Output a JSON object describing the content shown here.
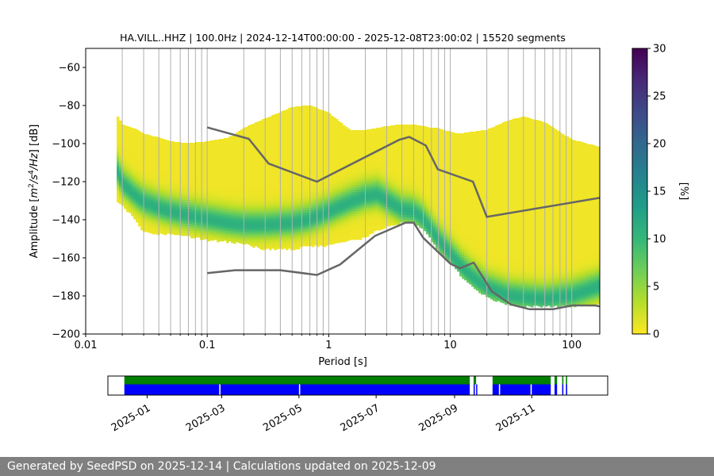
{
  "footer": {
    "text": "Generated by SeedPSD on 2025-12-14 | Calculations updated on 2025-12-09"
  },
  "chart_data": [
    {
      "type": "heatmap",
      "title": "HA.VILL..HHZ | 100.0Hz | 2024-12-14T00:00:00 - 2025-12-08T23:00:02 | 15520 segments",
      "xlabel": "Period [s]",
      "ylabel_parts": [
        "Amplitude [",
        "m",
        "2",
        "/",
        "s",
        "4",
        "/",
        "Hz",
        "] [dB]"
      ],
      "x_scale": "log",
      "xlim": [
        0.01,
        170
      ],
      "ylim": [
        -200,
        -50
      ],
      "x_ticks": [
        0.01,
        0.1,
        1,
        10,
        100
      ],
      "x_tick_labels": [
        "0.01",
        "0.1",
        "1",
        "10",
        "100"
      ],
      "y_ticks": [
        -60,
        -80,
        -100,
        -120,
        -140,
        -160,
        -180,
        -200
      ],
      "y_tick_labels": [
        "−60",
        "−80",
        "−100",
        "−120",
        "−140",
        "−160",
        "−180",
        "−200"
      ],
      "grid": "vertical",
      "colorbar": {
        "label": "[%]",
        "range": [
          0,
          30
        ],
        "ticks": [
          0,
          5,
          10,
          15,
          20,
          25,
          30
        ],
        "tick_labels": [
          "0",
          "5",
          "10",
          "15",
          "20",
          "25",
          "30"
        ],
        "colormap": "viridis",
        "colormap_stops": [
          "#fde725",
          "#b5de2b",
          "#6ece58",
          "#35b779",
          "#1f9e89",
          "#26828e",
          "#31688e",
          "#3e4989",
          "#482878",
          "#440154"
        ]
      },
      "psd_mode": {
        "period": [
          0.018,
          0.02,
          0.025,
          0.03,
          0.04,
          0.05,
          0.07,
          0.1,
          0.15,
          0.2,
          0.3,
          0.5,
          0.7,
          1.0,
          1.5,
          2.0,
          2.5,
          3.0,
          4.0,
          5.0,
          6.0,
          7.0,
          8.0,
          10,
          12,
          15,
          20,
          30,
          40,
          60,
          100,
          170
        ],
        "mode_db": [
          -114,
          -121,
          -127,
          -131,
          -134,
          -136,
          -138,
          -140,
          -142,
          -143,
          -143,
          -142,
          -140,
          -136,
          -131,
          -128,
          -127,
          -130,
          -135,
          -136,
          -140,
          -146,
          -151,
          -158,
          -164,
          -170,
          -176,
          -180,
          -181,
          -182,
          -180,
          -175
        ],
        "upper_db": [
          -85,
          -90,
          -92,
          -95,
          -97,
          -99,
          -100,
          -99,
          -97,
          -92,
          -87,
          -81,
          -80,
          -84,
          -93,
          -93,
          -92,
          -91,
          -90,
          -90,
          -91,
          -92,
          -92,
          -94,
          -95,
          -94,
          -93,
          -88,
          -86,
          -89,
          -98,
          -102
        ],
        "lower_db": [
          -130,
          -132,
          -138,
          -146,
          -147,
          -147,
          -148,
          -150,
          -151,
          -152,
          -155,
          -155,
          -153,
          -153,
          -150,
          -149,
          -145,
          -143,
          -141,
          -141,
          -144,
          -150,
          -156,
          -162,
          -168,
          -174,
          -180,
          -184,
          -185,
          -185,
          -185,
          -184
        ]
      },
      "nlnm": {
        "period": [
          0.1,
          0.17,
          0.4,
          0.8,
          1.24,
          2.4,
          4.3,
          5.0,
          6.0,
          10.0,
          12.0,
          15.6,
          21.9,
          31.6,
          45.0,
          70.0,
          101.0,
          154.0,
          170.0
        ],
        "db": [
          -168,
          -166.5,
          -166.5,
          -169,
          -163.5,
          -148.5,
          -141.5,
          -141.5,
          -149.5,
          -163,
          -165.5,
          -162.5,
          -177.5,
          -184.5,
          -187,
          -187,
          -185,
          -185,
          -185.5
        ]
      },
      "nhnm": {
        "period": [
          0.1,
          0.22,
          0.32,
          0.8,
          3.8,
          4.6,
          6.3,
          7.9,
          15.4,
          20.0,
          170.0
        ],
        "db": [
          -91.5,
          -97.5,
          -110.5,
          -120,
          -98,
          -96.5,
          -101,
          -113.5,
          -120,
          -138.5,
          -128.5
        ]
      }
    },
    {
      "type": "timeline",
      "date_ticks": [
        "2025-01",
        "2025-03",
        "2025-05",
        "2025-07",
        "2025-09",
        "2025-11"
      ],
      "date_tick_values": [
        "2025-01-01",
        "2025-03-01",
        "2025-05-01",
        "2025-07-01",
        "2025-09-01",
        "2025-11-01"
      ],
      "xlim": [
        "2024-12-01",
        "2025-12-31"
      ],
      "colors": {
        "available": "#008000",
        "processed": "#0000ff"
      },
      "available_spans": [
        [
          "2024-12-14",
          "2025-09-13"
        ],
        [
          "2025-09-16",
          "2025-09-18"
        ],
        [
          "2025-10-01",
          "2025-11-16"
        ],
        [
          "2025-11-19",
          "2025-11-21"
        ],
        [
          "2025-11-25",
          "2025-11-26"
        ],
        [
          "2025-11-28",
          "2025-11-29"
        ]
      ],
      "processed_spans": [
        [
          "2024-12-14",
          "2025-02-27"
        ],
        [
          "2025-02-28",
          "2025-05-01"
        ],
        [
          "2025-05-02",
          "2025-09-13"
        ],
        [
          "2025-09-16",
          "2025-09-17"
        ],
        [
          "2025-09-18",
          "2025-09-18"
        ],
        [
          "2025-10-01",
          "2025-10-06"
        ],
        [
          "2025-10-07",
          "2025-10-31"
        ],
        [
          "2025-11-01",
          "2025-11-16"
        ],
        [
          "2025-11-19",
          "2025-11-21"
        ],
        [
          "2025-11-25",
          "2025-11-26"
        ],
        [
          "2025-11-28",
          "2025-11-29"
        ]
      ]
    }
  ]
}
